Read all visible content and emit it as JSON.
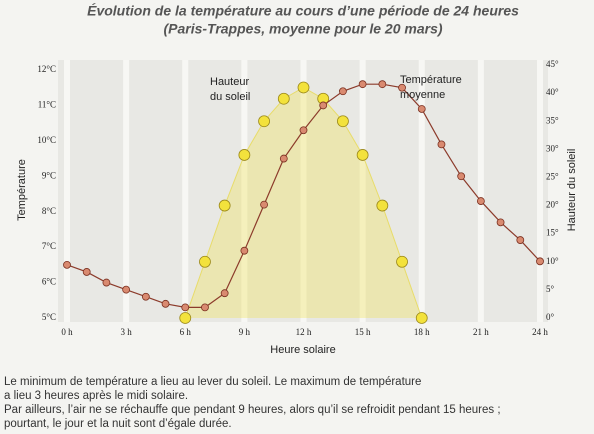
{
  "chart_data": {
    "type": "line",
    "title": [
      "Évolution de la température au cours d’une période de 24 heures",
      "(Paris-Trappes, moyenne pour le 20 mars)"
    ],
    "x_label": "Heure solaire",
    "y_label": "Température",
    "y2_label": "Hauteur du soleil",
    "annotations": [
      [
        "Hauteur",
        "du soleil"
      ],
      [
        "Température",
        "moyenne"
      ]
    ],
    "xlim": [
      0,
      24
    ],
    "xticks": [
      {
        "value": 0,
        "label": "0 h"
      },
      {
        "value": 3,
        "label": "3 h"
      },
      {
        "value": 6,
        "label": "6 h"
      },
      {
        "value": 9,
        "label": "9 h"
      },
      {
        "value": 12,
        "label": "12 h"
      },
      {
        "value": 15,
        "label": "15 h"
      },
      {
        "value": 18,
        "label": "18 h"
      },
      {
        "value": 21,
        "label": "21 h"
      },
      {
        "value": 24,
        "label": "24 h"
      }
    ],
    "ylim": [
      5,
      12
    ],
    "yticks": [
      {
        "value": 5,
        "label": "5°C"
      },
      {
        "value": 6,
        "label": "6°C"
      },
      {
        "value": 7,
        "label": "7°C"
      },
      {
        "value": 8,
        "label": "8°C"
      },
      {
        "value": 9,
        "label": "9°C"
      },
      {
        "value": 10,
        "label": "10°C"
      },
      {
        "value": 11,
        "label": "11°C"
      },
      {
        "value": 12,
        "label": "12°C"
      }
    ],
    "y2lim": [
      0,
      45
    ],
    "y2ticks": [
      {
        "value": 0,
        "label": "0°"
      },
      {
        "value": 5,
        "label": "5°"
      },
      {
        "value": 10,
        "label": "10°"
      },
      {
        "value": 15,
        "label": "15°"
      },
      {
        "value": 20,
        "label": "20°"
      },
      {
        "value": 25,
        "label": "25°"
      },
      {
        "value": 30,
        "label": "30°"
      },
      {
        "value": 35,
        "label": "35°"
      },
      {
        "value": 40,
        "label": "40°"
      },
      {
        "value": 45,
        "label": "45°"
      }
    ],
    "grid": true,
    "series": [
      {
        "axis": "y2",
        "color": "#f3e23c",
        "area": true,
        "x": [
          6,
          7,
          8,
          9,
          10,
          11,
          12,
          13,
          14,
          15,
          16,
          17,
          18
        ],
        "values": [
          0,
          10,
          20,
          29,
          35,
          39,
          41,
          39,
          35,
          29,
          20,
          10,
          0
        ]
      },
      {
        "axis": "y",
        "color": "#8c3b2b",
        "x": [
          0,
          1,
          2,
          3,
          4,
          5,
          6,
          7,
          8,
          9,
          10,
          11,
          12,
          13,
          14,
          15,
          16,
          17,
          18,
          19,
          20,
          21,
          22,
          23,
          24
        ],
        "values": [
          6.5,
          6.3,
          6.0,
          5.8,
          5.6,
          5.4,
          5.3,
          5.3,
          5.7,
          6.9,
          8.2,
          9.5,
          10.3,
          11.0,
          11.4,
          11.6,
          11.6,
          11.5,
          10.9,
          9.9,
          9.0,
          8.3,
          7.7,
          7.2,
          6.6
        ]
      }
    ]
  },
  "caption": [
    "Le minimum de température a lieu au lever du soleil. Le maximum de température",
    "a lieu 3 heures après le midi solaire.",
    "Par ailleurs, l’air ne se réchauffe que pendant 9 heures, alors qu’il se refroidit pendant 15 heures ;",
    "pourtant, le jour et la nuit sont d’égale durée."
  ]
}
